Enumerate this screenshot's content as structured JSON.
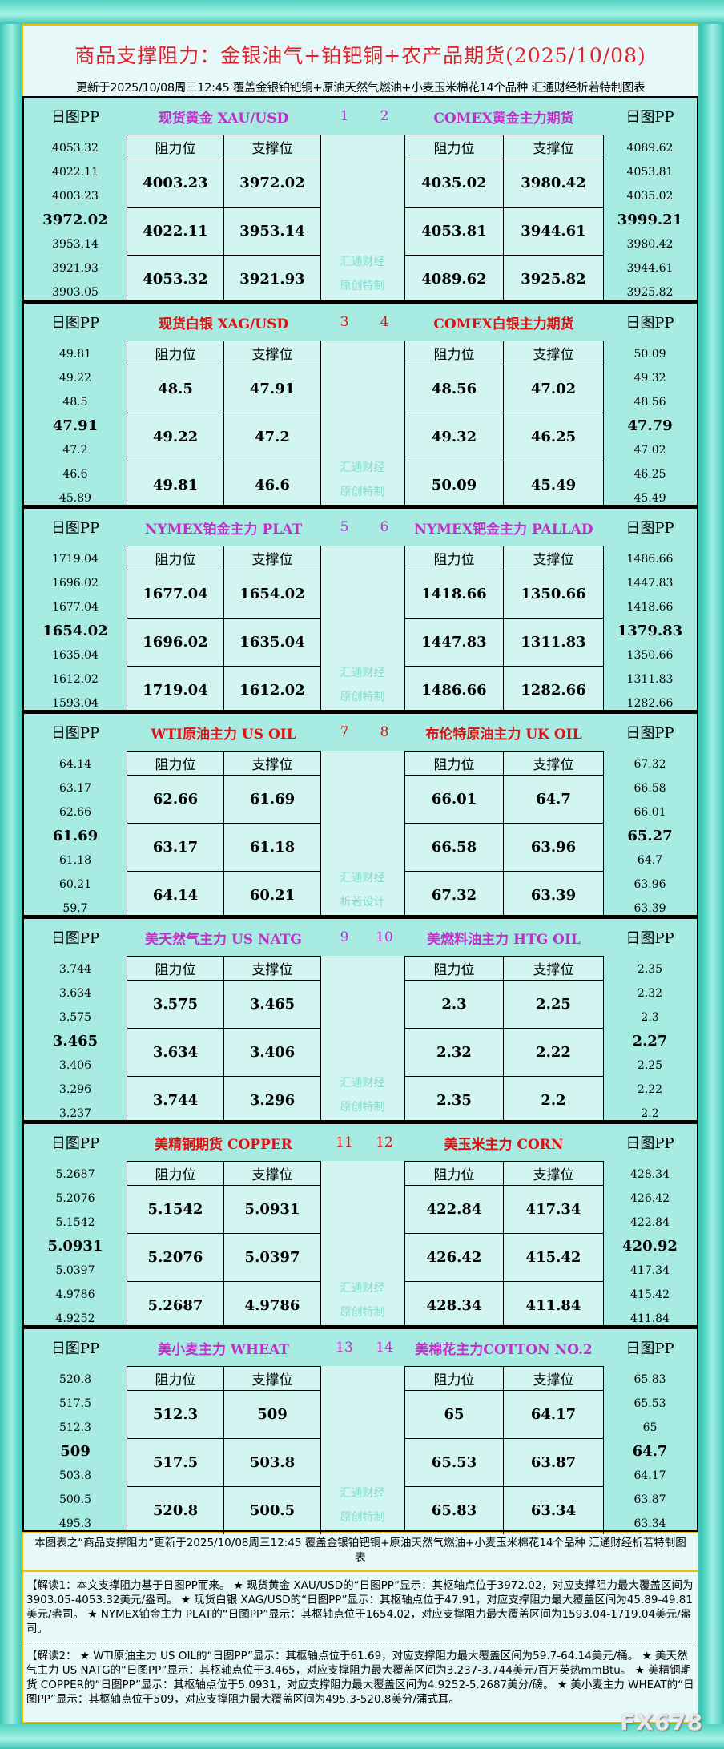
{
  "header": {
    "title": "商品支撑阻力：金银油气+铂钯铜+农产品期货(2025/10/08)",
    "subtitle": "更新于2025/10/08周三12:45  覆盖金银铂钯铜+原油天然气燃油+小麦玉米棉花14个品种  汇通财经析若特制图表"
  },
  "labels": {
    "pp": "日图PP",
    "resistance": "阻力位",
    "support": "支撑位"
  },
  "colors": {
    "purple": "#c030c8",
    "red": "#e01010"
  },
  "sections": [
    {
      "color": "purple",
      "wm": [
        "汇通财经",
        "原创特制"
      ],
      "nums": [
        "1",
        "2"
      ],
      "left": {
        "name": "现货黄金 XAU/USD",
        "pp": [
          "4053.32",
          "4022.11",
          "4003.23",
          "3972.02",
          "3953.14",
          "3921.93",
          "3903.05"
        ],
        "rows": [
          [
            "4003.23",
            "3972.02"
          ],
          [
            "4022.11",
            "3953.14"
          ],
          [
            "4053.32",
            "3921.93"
          ]
        ]
      },
      "right": {
        "name": "COMEX黄金主力期货",
        "pp": [
          "4089.62",
          "4053.81",
          "4035.02",
          "3999.21",
          "3980.42",
          "3944.61",
          "3925.82"
        ],
        "rows": [
          [
            "4035.02",
            "3980.42"
          ],
          [
            "4053.81",
            "3944.61"
          ],
          [
            "4089.62",
            "3925.82"
          ]
        ]
      }
    },
    {
      "color": "red",
      "wm": [
        "汇通财经",
        "原创特制"
      ],
      "nums": [
        "3",
        "4"
      ],
      "left": {
        "name": "现货白银 XAG/USD",
        "pp": [
          "49.81",
          "49.22",
          "48.5",
          "47.91",
          "47.2",
          "46.6",
          "45.89"
        ],
        "rows": [
          [
            "48.5",
            "47.91"
          ],
          [
            "49.22",
            "47.2"
          ],
          [
            "49.81",
            "46.6"
          ]
        ]
      },
      "right": {
        "name": "COMEX白银主力期货",
        "pp": [
          "50.09",
          "49.32",
          "48.56",
          "47.79",
          "47.02",
          "46.25",
          "45.49"
        ],
        "rows": [
          [
            "48.56",
            "47.02"
          ],
          [
            "49.32",
            "46.25"
          ],
          [
            "50.09",
            "45.49"
          ]
        ]
      }
    },
    {
      "color": "purple",
      "wm": [
        "汇通财经",
        "原创特制"
      ],
      "nums": [
        "5",
        "6"
      ],
      "left": {
        "name": "NYMEX铂金主力 PLAT",
        "pp": [
          "1719.04",
          "1696.02",
          "1677.04",
          "1654.02",
          "1635.04",
          "1612.02",
          "1593.04"
        ],
        "rows": [
          [
            "1677.04",
            "1654.02"
          ],
          [
            "1696.02",
            "1635.04"
          ],
          [
            "1719.04",
            "1612.02"
          ]
        ]
      },
      "right": {
        "name": "NYMEX钯金主力 PALLAD",
        "pp": [
          "1486.66",
          "1447.83",
          "1418.66",
          "1379.83",
          "1350.66",
          "1311.83",
          "1282.66"
        ],
        "rows": [
          [
            "1418.66",
            "1350.66"
          ],
          [
            "1447.83",
            "1311.83"
          ],
          [
            "1486.66",
            "1282.66"
          ]
        ]
      }
    },
    {
      "color": "red",
      "wm": [
        "汇通财经",
        "析若设计"
      ],
      "nums": [
        "7",
        "8"
      ],
      "left": {
        "name": "WTI原油主力 US OIL",
        "pp": [
          "64.14",
          "63.17",
          "62.66",
          "61.69",
          "61.18",
          "60.21",
          "59.7"
        ],
        "rows": [
          [
            "62.66",
            "61.69"
          ],
          [
            "63.17",
            "61.18"
          ],
          [
            "64.14",
            "60.21"
          ]
        ]
      },
      "right": {
        "name": "布伦特原油主力 UK OIL",
        "pp": [
          "67.32",
          "66.58",
          "66.01",
          "65.27",
          "64.7",
          "63.96",
          "63.39"
        ],
        "rows": [
          [
            "66.01",
            "64.7"
          ],
          [
            "66.58",
            "63.96"
          ],
          [
            "67.32",
            "63.39"
          ]
        ]
      }
    },
    {
      "color": "purple",
      "wm": [
        "汇通财经",
        "原创特制"
      ],
      "nums": [
        "9",
        "10"
      ],
      "left": {
        "name": "美天然气主力 US NATG",
        "pp": [
          "3.744",
          "3.634",
          "3.575",
          "3.465",
          "3.406",
          "3.296",
          "3.237"
        ],
        "rows": [
          [
            "3.575",
            "3.465"
          ],
          [
            "3.634",
            "3.406"
          ],
          [
            "3.744",
            "3.296"
          ]
        ]
      },
      "right": {
        "name": "美燃料油主力 HTG OIL",
        "pp": [
          "2.35",
          "2.32",
          "2.3",
          "2.27",
          "2.25",
          "2.22",
          "2.2"
        ],
        "rows": [
          [
            "2.3",
            "2.25"
          ],
          [
            "2.32",
            "2.22"
          ],
          [
            "2.35",
            "2.2"
          ]
        ]
      }
    },
    {
      "color": "red",
      "wm": [
        "汇通财经",
        "原创特制"
      ],
      "nums": [
        "11",
        "12"
      ],
      "left": {
        "name": "美精铜期货 COPPER",
        "pp": [
          "5.2687",
          "5.2076",
          "5.1542",
          "5.0931",
          "5.0397",
          "4.9786",
          "4.9252"
        ],
        "rows": [
          [
            "5.1542",
            "5.0931"
          ],
          [
            "5.2076",
            "5.0397"
          ],
          [
            "5.2687",
            "4.9786"
          ]
        ]
      },
      "right": {
        "name": "美玉米主力 CORN",
        "pp": [
          "428.34",
          "426.42",
          "422.84",
          "420.92",
          "417.34",
          "415.42",
          "411.84"
        ],
        "rows": [
          [
            "422.84",
            "417.34"
          ],
          [
            "426.42",
            "415.42"
          ],
          [
            "428.34",
            "411.84"
          ]
        ]
      }
    },
    {
      "color": "purple",
      "wm": [
        "汇通财经",
        "原创特制"
      ],
      "nums": [
        "13",
        "14"
      ],
      "left": {
        "name": "美小麦主力 WHEAT",
        "pp": [
          "520.8",
          "517.5",
          "512.3",
          "509",
          "503.8",
          "500.5",
          "495.3"
        ],
        "rows": [
          [
            "512.3",
            "509"
          ],
          [
            "517.5",
            "503.8"
          ],
          [
            "520.8",
            "500.5"
          ]
        ]
      },
      "right": {
        "name": "美棉花主力COTTON NO.2",
        "pp": [
          "65.83",
          "65.53",
          "65",
          "64.7",
          "64.17",
          "63.87",
          "63.34"
        ],
        "rows": [
          [
            "65",
            "64.17"
          ],
          [
            "65.53",
            "63.87"
          ],
          [
            "65.83",
            "63.34"
          ]
        ]
      }
    }
  ],
  "footer": {
    "note": "本图表之“商品支撑阻力”更新于2025/10/08周三12:45 覆盖金银铂钯铜+原油天然气燃油+小麦玉米棉花14个品种 汇通财经析若特制图表",
    "read1": "【解读1：本文支撑阻力基于日图PP而来。 ★ 现货黄金 XAU/USD的“日图PP”显示：其枢轴点位于3972.02，对应支撑阻力最大覆盖区间为3903.05-4053.32美元/盎司。 ★ 现货白银 XAG/USD的“日图PP”显示：其枢轴点位于47.91，对应支撑阻力最大覆盖区间为45.89-49.81美元/盎司。 ★ NYMEX铂金主力 PLAT的“日图PP”显示：其枢轴点位于1654.02，对应支撑阻力最大覆盖区间为1593.04-1719.04美元/盎司。",
    "read2": "【解读2： ★ WTI原油主力 US OIL的“日图PP”显示：其枢轴点位于61.69，对应支撑阻力最大覆盖区间为59.7-64.14美元/桶。 ★ 美天然气主力 US NATG的“日图PP”显示：其枢轴点位于3.465，对应支撑阻力最大覆盖区间为3.237-3.744美元/百万英热mmBtu。 ★ 美精铜期货 COPPER的“日图PP”显示：其枢轴点位于5.0931，对应支撑阻力最大覆盖区间为4.9252-5.2687美分/磅。 ★ 美小麦主力 WHEAT的“日图PP”显示：其枢轴点位于509，对应支撑阻力最大覆盖区间为495.3-520.8美分/蒲式耳。",
    "logo": "FX678"
  }
}
